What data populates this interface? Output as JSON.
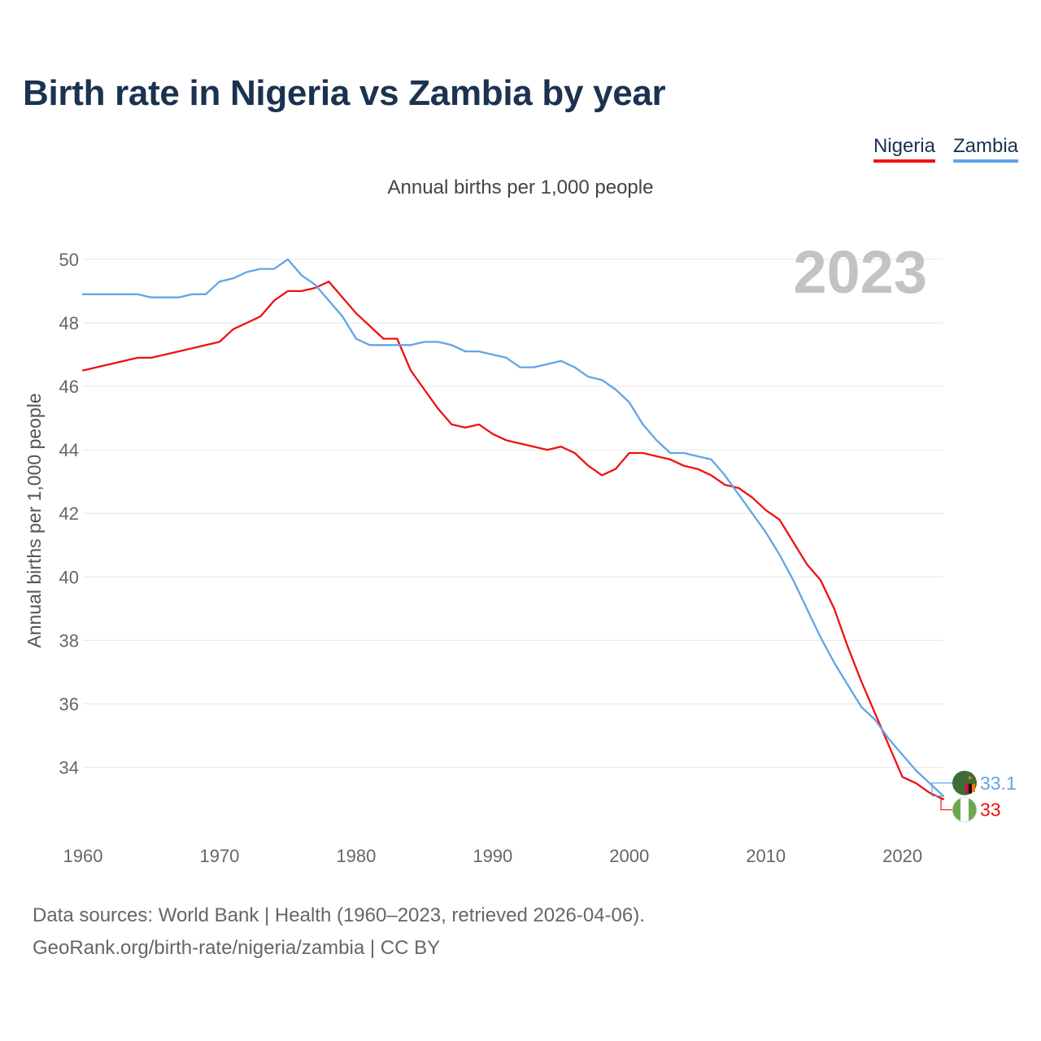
{
  "title": "Birth rate in Nigeria vs Zambia by year",
  "legend": [
    "Nigeria",
    "Zambia"
  ],
  "subtitle": "Annual births per 1,000 people",
  "year_watermark": "2023",
  "footer": {
    "line1": "Data sources: World Bank | Health (1960–2023, retrieved 2026-04-06).",
    "line2": "GeoRank.org/birth-rate/nigeria/zambia | CC BY"
  },
  "colors": {
    "nigeria": "#ee1111",
    "zambia": "#60a5e8",
    "title": "#1b3250",
    "grid": "#e6e6e6"
  },
  "chart_data": {
    "type": "line",
    "title": "Birth rate in Nigeria vs Zambia by year",
    "xlabel": "",
    "ylabel": "Annual births per 1,000 people",
    "xlim": [
      1960,
      2023
    ],
    "ylim": [
      32.3,
      51.2
    ],
    "xticks": [
      1960,
      1970,
      1980,
      1990,
      2000,
      2010,
      2020
    ],
    "yticks": [
      34,
      36,
      38,
      40,
      42,
      44,
      46,
      48,
      50
    ],
    "grid": true,
    "legend_position": "top-right",
    "x": [
      1960,
      1961,
      1962,
      1963,
      1964,
      1965,
      1966,
      1967,
      1968,
      1969,
      1970,
      1971,
      1972,
      1973,
      1974,
      1975,
      1976,
      1977,
      1978,
      1979,
      1980,
      1981,
      1982,
      1983,
      1984,
      1985,
      1986,
      1987,
      1988,
      1989,
      1990,
      1991,
      1992,
      1993,
      1994,
      1995,
      1996,
      1997,
      1998,
      1999,
      2000,
      2001,
      2002,
      2003,
      2004,
      2005,
      2006,
      2007,
      2008,
      2009,
      2010,
      2011,
      2012,
      2013,
      2014,
      2015,
      2016,
      2017,
      2018,
      2019,
      2020,
      2021,
      2022,
      2023
    ],
    "series": [
      {
        "name": "Nigeria",
        "color": "#ee1111",
        "end_label": "33",
        "values": [
          46.5,
          46.6,
          46.7,
          46.8,
          46.9,
          46.9,
          47.0,
          47.1,
          47.2,
          47.3,
          47.4,
          47.8,
          48.0,
          48.2,
          48.7,
          49.0,
          49.0,
          49.1,
          49.3,
          48.8,
          48.3,
          47.9,
          47.5,
          47.5,
          46.5,
          45.9,
          45.3,
          44.8,
          44.7,
          44.8,
          44.5,
          44.3,
          44.2,
          44.1,
          44.0,
          44.1,
          43.9,
          43.5,
          43.2,
          43.4,
          43.9,
          43.9,
          43.8,
          43.7,
          43.5,
          43.4,
          43.2,
          42.9,
          42.8,
          42.5,
          42.1,
          41.8,
          41.1,
          40.4,
          39.9,
          39.0,
          37.8,
          36.7,
          35.7,
          34.7,
          33.7,
          33.5,
          33.2,
          33.0
        ]
      },
      {
        "name": "Zambia",
        "color": "#60a5e8",
        "end_label": "33.1",
        "values": [
          48.9,
          48.9,
          48.9,
          48.9,
          48.9,
          48.8,
          48.8,
          48.8,
          48.9,
          48.9,
          49.3,
          49.4,
          49.6,
          49.7,
          49.7,
          50.0,
          49.5,
          49.2,
          48.7,
          48.2,
          47.5,
          47.3,
          47.3,
          47.3,
          47.3,
          47.4,
          47.4,
          47.3,
          47.1,
          47.1,
          47.0,
          46.9,
          46.6,
          46.6,
          46.7,
          46.8,
          46.6,
          46.3,
          46.2,
          45.9,
          45.5,
          44.8,
          44.3,
          43.9,
          43.9,
          43.8,
          43.7,
          43.2,
          42.6,
          42.0,
          41.4,
          40.7,
          39.9,
          39.0,
          38.1,
          37.3,
          36.6,
          35.9,
          35.5,
          34.9,
          34.4,
          33.9,
          33.5,
          33.1
        ]
      }
    ]
  }
}
